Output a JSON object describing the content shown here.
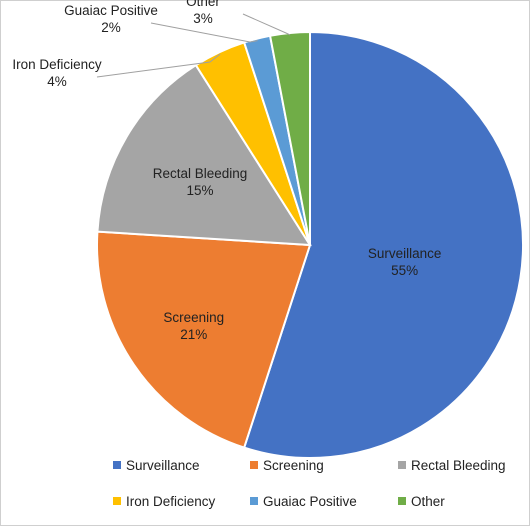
{
  "chart_data": {
    "type": "pie",
    "categories": [
      "Surveillance",
      "Screening",
      "Rectal Bleeding",
      "Iron Deficiency",
      "Guaiac Positive",
      "Other"
    ],
    "values": [
      55,
      21,
      15,
      4,
      2,
      3
    ],
    "percent_labels": [
      "55%",
      "21%",
      "15%",
      "4%",
      "2%",
      "3%"
    ],
    "colors": [
      "#4472C4",
      "#ED7D31",
      "#A5A5A5",
      "#FFC000",
      "#5B9BD5",
      "#70AD47"
    ],
    "legend_placement": "bottom",
    "title": ""
  }
}
